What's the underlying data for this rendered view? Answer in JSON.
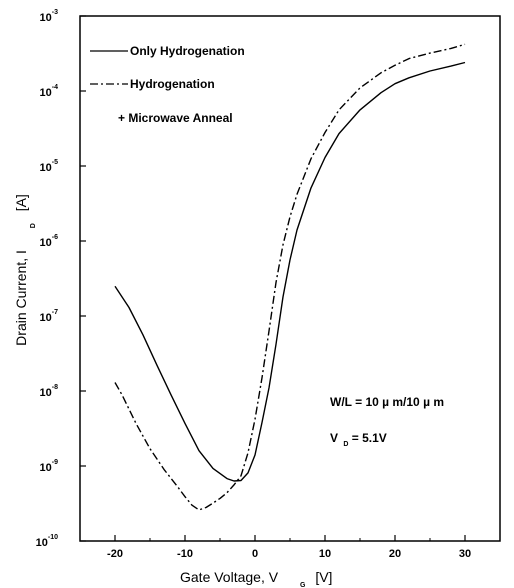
{
  "chart_data": {
    "type": "line",
    "xlabel": {
      "main": "Gate Voltage, V",
      "sub": "G",
      "unit": "[V]"
    },
    "ylabel": {
      "main": "Drain Current, I",
      "sub": "D",
      "unit": "[A]"
    },
    "xlim": [
      -25,
      35
    ],
    "ylim": [
      1e-10,
      0.001
    ],
    "yscale": "log",
    "x_ticks": [
      "-20",
      "-10",
      "0",
      "10",
      "20",
      "30"
    ],
    "x_tick_values": [
      -20,
      -10,
      0,
      10,
      20,
      30
    ],
    "y_ticks": [
      {
        "base": "10",
        "exp": "-3"
      },
      {
        "base": "10",
        "exp": "-4"
      },
      {
        "base": "10",
        "exp": "-5"
      },
      {
        "base": "10",
        "exp": "-6"
      },
      {
        "base": "10",
        "exp": "-7"
      },
      {
        "base": "10",
        "exp": "-8"
      },
      {
        "base": "10",
        "exp": "-9"
      },
      {
        "base": "10",
        "exp": "-10"
      }
    ],
    "y_tick_values": [
      0.001,
      0.0001,
      1e-05,
      1e-06,
      1e-07,
      1e-08,
      1e-09,
      1e-10
    ],
    "grid": false,
    "legend_position": "top-left",
    "legend": [
      {
        "label": "Only Hydrogenation",
        "style": "solid"
      },
      {
        "label": "Hydrogenation",
        "style": "dash-dot"
      },
      {
        "label": "+ Microwave Anneal",
        "style": "none"
      }
    ],
    "annotations": [
      {
        "text": "W/L = 10    µ m/10  µ m"
      },
      {
        "main": "V",
        "sub": "D",
        "rest": " = 5.1V"
      }
    ],
    "series": [
      {
        "style": "solid",
        "x": [
          -20,
          -18,
          -16,
          -14,
          -12,
          -10,
          -8,
          -6,
          -4,
          -3,
          -2,
          -1,
          0,
          1,
          2,
          3,
          4,
          5,
          6,
          8,
          10,
          12,
          15,
          18,
          20,
          22,
          25,
          28,
          30
        ],
        "y": [
          2.5e-07,
          1.3e-07,
          5.6e-08,
          2.2e-08,
          8.9e-09,
          3.7e-09,
          1.6e-09,
          9.3e-10,
          6.8e-10,
          6.3e-10,
          6.4e-10,
          8.1e-10,
          1.4e-09,
          3.8e-09,
          1.1e-08,
          4.2e-08,
          1.8e-07,
          5.6e-07,
          1.4e-06,
          5.1e-06,
          1.3e-05,
          2.7e-05,
          5.6e-05,
          9.5e-05,
          0.000125,
          0.00015,
          0.000185,
          0.000215,
          0.00024
        ]
      },
      {
        "style": "dash-dot",
        "x": [
          -20,
          -19,
          -17,
          -15,
          -13,
          -11,
          -10,
          -9,
          -8,
          -7,
          -6,
          -5,
          -4,
          -3,
          -2,
          -1,
          0,
          1,
          2,
          3,
          4,
          5,
          6,
          8,
          10,
          12,
          15,
          18,
          20,
          22,
          25,
          28,
          30
        ],
        "y": [
          1.3e-08,
          8.9e-09,
          3.7e-09,
          1.7e-09,
          9e-10,
          5.2e-10,
          3.9e-10,
          3e-10,
          2.6e-10,
          2.8e-10,
          3.2e-10,
          3.7e-10,
          4.4e-10,
          5.6e-10,
          7.4e-10,
          1.5e-09,
          4.2e-09,
          1.5e-08,
          6.3e-08,
          2.8e-07,
          8.9e-07,
          2.1e-06,
          4.2e-06,
          1.25e-05,
          2.8e-05,
          5.6e-05,
          0.00011,
          0.000175,
          0.00022,
          0.00027,
          0.00032,
          0.00037,
          0.00042
        ]
      }
    ]
  }
}
